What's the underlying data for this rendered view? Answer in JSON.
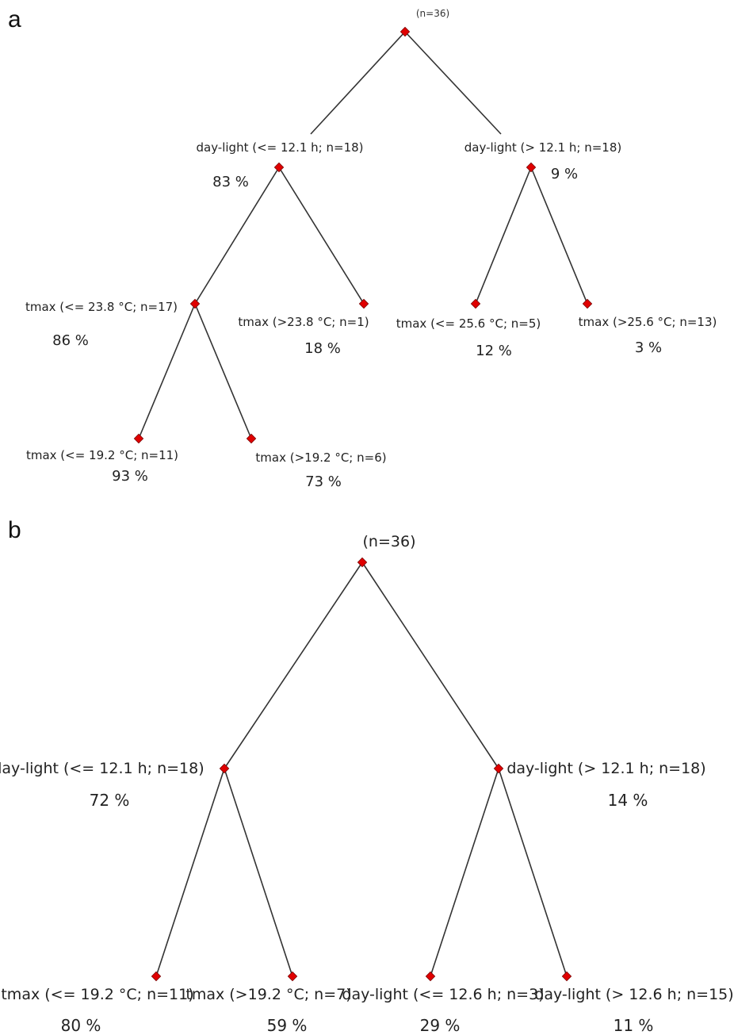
{
  "panels": {
    "a": {
      "label": "a",
      "root": "(n=36)",
      "nodes": [
        {
          "name": "day-light (<= 12.1 h; n=18)",
          "pct": "83 %"
        },
        {
          "name": "day-light (> 12.1 h; n=18)",
          "pct": "9 %"
        },
        {
          "name": "tmax (<= 23.8 °C; n=17)",
          "pct": "86 %"
        },
        {
          "name": "tmax (>23.8 °C; n=1)",
          "pct": "18 %"
        },
        {
          "name": "tmax (<= 25.6 °C; n=5)",
          "pct": "12 %"
        },
        {
          "name": "tmax (>25.6 °C; n=13)",
          "pct": "3 %"
        },
        {
          "name": "tmax (<= 19.2 °C; n=11)",
          "pct": "93 %"
        },
        {
          "name": "tmax (>19.2 °C; n=6)",
          "pct": "73 %"
        }
      ]
    },
    "b": {
      "label": "b",
      "root": "(n=36)",
      "nodes": [
        {
          "name": "day-light (<= 12.1 h; n=18)",
          "pct": "72 %"
        },
        {
          "name": "day-light (> 12.1 h; n=18)",
          "pct": "14 %"
        },
        {
          "name": "tmax (<= 19.2 °C; n=11)",
          "pct": "80 %"
        },
        {
          "name": "tmax (>19.2 °C; n=7)",
          "pct": "59 %"
        },
        {
          "name": "day-light (<= 12.6 h; n=3)",
          "pct": "29 %"
        },
        {
          "name": "day-light (> 12.6 h; n=15)",
          "pct": "11 %"
        }
      ]
    }
  },
  "colors": {
    "node": "#e00000",
    "line": "#333333"
  }
}
